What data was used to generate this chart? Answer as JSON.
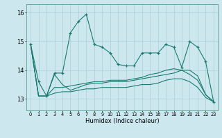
{
  "xlabel": "Humidex (Indice chaleur)",
  "bg_color": "#cce8ee",
  "grid_color": "#aacfd8",
  "line_color": "#1a7a6e",
  "xlim": [
    -0.5,
    23.5
  ],
  "ylim": [
    12.6,
    16.3
  ],
  "yticks": [
    13,
    14,
    15,
    16
  ],
  "xticks": [
    0,
    1,
    2,
    3,
    4,
    5,
    6,
    7,
    8,
    9,
    10,
    11,
    12,
    13,
    14,
    15,
    16,
    17,
    18,
    19,
    20,
    21,
    22,
    23
  ],
  "series": [
    [
      14.9,
      13.6,
      13.1,
      13.9,
      13.9,
      15.3,
      15.7,
      15.95,
      14.9,
      14.8,
      14.6,
      14.2,
      14.15,
      14.15,
      14.6,
      14.6,
      14.6,
      14.9,
      14.8,
      14.1,
      15.0,
      14.8,
      14.3,
      12.9
    ],
    [
      14.9,
      13.1,
      13.1,
      13.85,
      13.5,
      13.3,
      13.4,
      13.5,
      13.55,
      13.55,
      13.6,
      13.6,
      13.6,
      13.65,
      13.7,
      13.75,
      13.8,
      13.85,
      13.9,
      14.0,
      14.0,
      13.8,
      13.15,
      12.9
    ],
    [
      14.9,
      13.1,
      13.1,
      13.4,
      13.4,
      13.45,
      13.5,
      13.55,
      13.6,
      13.6,
      13.65,
      13.65,
      13.65,
      13.7,
      13.75,
      13.85,
      13.9,
      14.0,
      14.05,
      14.0,
      13.85,
      13.65,
      13.15,
      12.9
    ],
    [
      14.9,
      13.1,
      13.1,
      13.2,
      13.25,
      13.25,
      13.3,
      13.35,
      13.35,
      13.4,
      13.4,
      13.4,
      13.4,
      13.45,
      13.5,
      13.5,
      13.55,
      13.65,
      13.7,
      13.7,
      13.6,
      13.4,
      13.05,
      12.9
    ]
  ]
}
